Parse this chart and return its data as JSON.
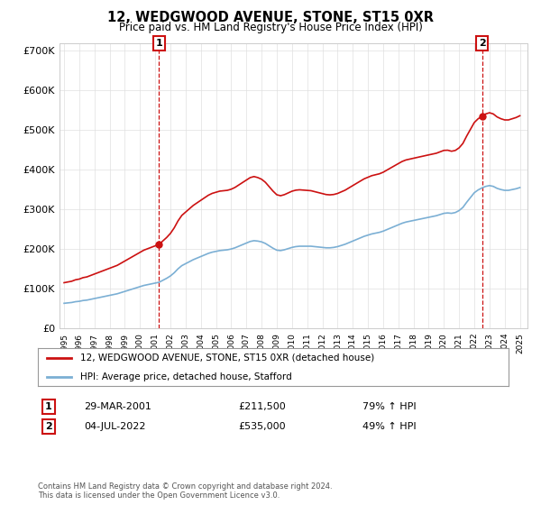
{
  "title": "12, WEDGWOOD AVENUE, STONE, ST15 0XR",
  "subtitle": "Price paid vs. HM Land Registry's House Price Index (HPI)",
  "title_fontsize": 10.5,
  "subtitle_fontsize": 8.5,
  "ylim": [
    0,
    720000
  ],
  "yticks": [
    0,
    100000,
    200000,
    300000,
    400000,
    500000,
    600000,
    700000
  ],
  "ytick_labels": [
    "£0",
    "£100K",
    "£200K",
    "£300K",
    "£400K",
    "£500K",
    "£600K",
    "£700K"
  ],
  "xlim_start": 1994.7,
  "xlim_end": 2025.5,
  "hpi_color": "#7BAFD4",
  "price_color": "#CC1111",
  "marker1_date": 2001.24,
  "marker1_price": 211500,
  "marker1_label": "1",
  "marker2_date": 2022.51,
  "marker2_price": 535000,
  "marker2_label": "2",
  "legend_line1": "12, WEDGWOOD AVENUE, STONE, ST15 0XR (detached house)",
  "legend_line2": "HPI: Average price, detached house, Stafford",
  "note1_label": "1",
  "note1_date": "29-MAR-2001",
  "note1_price": "£211,500",
  "note1_hpi": "79% ↑ HPI",
  "note2_label": "2",
  "note2_date": "04-JUL-2022",
  "note2_price": "£535,000",
  "note2_hpi": "49% ↑ HPI",
  "footer": "Contains HM Land Registry data © Crown copyright and database right 2024.\nThis data is licensed under the Open Government Licence v3.0.",
  "background_color": "#ffffff",
  "grid_color": "#e0e0e0"
}
